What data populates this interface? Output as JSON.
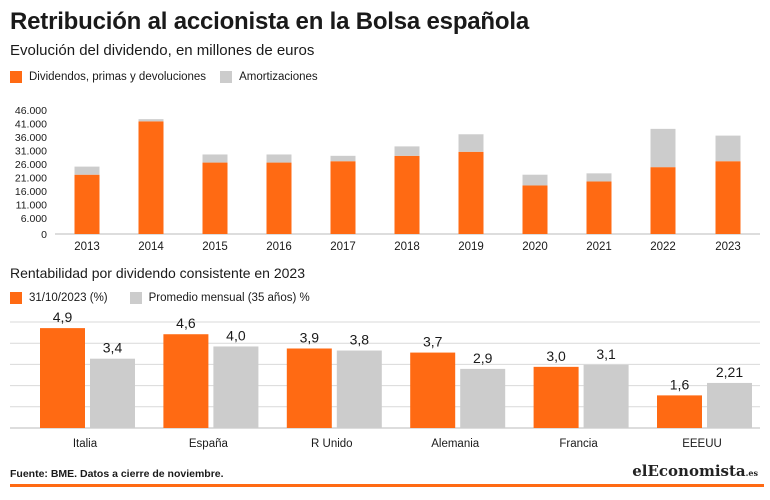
{
  "title": "Retribución al accionista en la Bolsa española",
  "subtitle": "Evolución del dividendo, en millones de euros",
  "colors": {
    "orange": "#ff6a13",
    "grey": "#cccccc",
    "grid": "#d9d9d9"
  },
  "chart_data": [
    {
      "type": "bar",
      "stacked": true,
      "title": "Evolución del dividendo, en millones de euros",
      "categories": [
        "2013",
        "2014",
        "2015",
        "2016",
        "2017",
        "2018",
        "2019",
        "2020",
        "2021",
        "2022",
        "2023"
      ],
      "series": [
        {
          "name": "Dividendos, primas y devoluciones",
          "values": [
            22000,
            41800,
            26500,
            26500,
            27000,
            29000,
            30500,
            18000,
            19500,
            24800,
            27000
          ]
        },
        {
          "name": "Amortizaciones",
          "values": [
            3000,
            800,
            3000,
            3000,
            2000,
            3500,
            6500,
            4000,
            3000,
            14200,
            9500
          ]
        }
      ],
      "ylim": [
        0,
        46000
      ],
      "yticks": [
        0,
        6000,
        11000,
        16000,
        21000,
        26000,
        31000,
        36000,
        41000,
        46000
      ],
      "ytick_labels": [
        "0",
        "6.000",
        "11.000",
        "16.000",
        "21.000",
        "26.000",
        "31.000",
        "36.000",
        "41.000",
        "46.000"
      ],
      "legend": "top-left"
    },
    {
      "type": "bar",
      "title": "Rentabilidad por dividendo consistente en 2023",
      "categories": [
        "Italia",
        "España",
        "R Unido",
        "Alemania",
        "Francia",
        "EEEUU"
      ],
      "series": [
        {
          "name": "31/10/2023 (%)",
          "values": [
            4.9,
            4.6,
            3.9,
            3.7,
            3.0,
            1.6
          ],
          "labels": [
            "4,9",
            "4,6",
            "3,9",
            "3,7",
            "3,0",
            "1,6"
          ]
        },
        {
          "name": "Promedio mensual (35 años) %",
          "values": [
            3.4,
            4.0,
            3.8,
            2.9,
            3.1,
            2.21
          ],
          "labels": [
            "3,4",
            "4,0",
            "3,8",
            "2,9",
            "3,1",
            "2,21"
          ]
        }
      ],
      "ylim": [
        0,
        5.2
      ],
      "grid_lines": 5,
      "legend": "top-left"
    }
  ],
  "section2": {
    "title": "Rentabilidad por dividendo consistente en 2023"
  },
  "footer": {
    "source": "Fuente: BME. Datos a cierre de noviembre.",
    "brand_main": "elEconomista",
    "brand_tld": ".es"
  }
}
